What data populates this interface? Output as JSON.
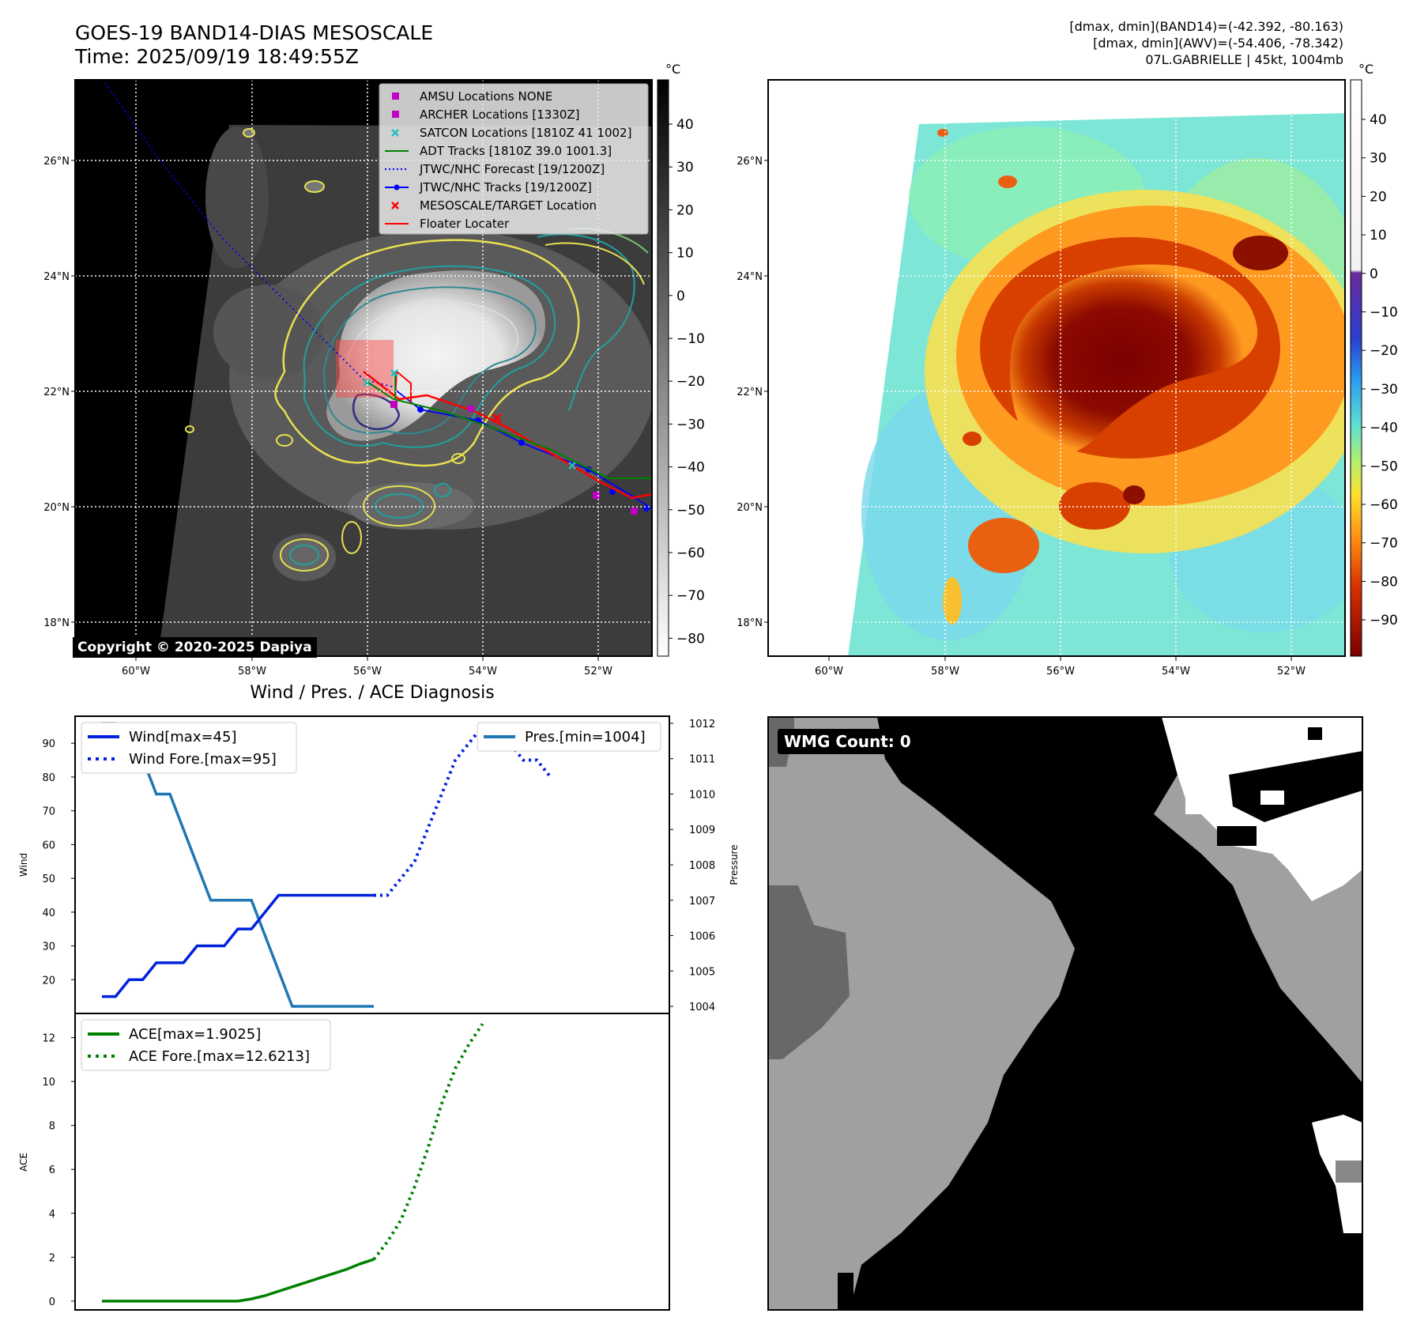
{
  "header": {
    "title_line1": "GOES-19 BAND14-DIAS MESOSCALE",
    "title_line2": "Time: 2025/09/19 18:49:55Z",
    "info_line1": "[dmax, dmin](BAND14)=(-42.392, -80.163)",
    "info_line2": "[dmax, dmin](AWV)=(-54.406, -78.342)",
    "info_line3": "07L.GABRIELLE | 45kt, 1004mb"
  },
  "maps": {
    "lat_ticks": [
      "26°N",
      "24°N",
      "22°N",
      "20°N",
      "18°N"
    ],
    "lon_ticks": [
      "60°W",
      "58°W",
      "56°W",
      "54°W",
      "52°W"
    ],
    "unit": "°C",
    "left_colorbar_ticks": [
      "40",
      "30",
      "20",
      "10",
      "0",
      "−10",
      "−20",
      "−30",
      "−40",
      "−50",
      "−60",
      "−70",
      "−80"
    ],
    "right_colorbar_ticks": [
      "40",
      "30",
      "20",
      "10",
      "0",
      "−10",
      "−20",
      "−30",
      "−40",
      "−50",
      "−60",
      "−70",
      "−80",
      "−90"
    ],
    "copyright": "Copyright © 2020-2025 Dapiya",
    "legend": [
      {
        "label": "AMSU Locations NONE",
        "kind": "square",
        "color": "#c000c0"
      },
      {
        "label": "ARCHER Locations [1330Z]",
        "kind": "square",
        "color": "#c000c0"
      },
      {
        "label": "SATCON Locations [1810Z 41 1002]",
        "kind": "x",
        "color": "#20c0c0"
      },
      {
        "label": "ADT Tracks [1810Z 39.0 1001.3]",
        "kind": "line",
        "color": "#008000"
      },
      {
        "label": "JTWC/NHC Forecast [19/1200Z]",
        "kind": "dotted",
        "color": "#0000ff"
      },
      {
        "label": "JTWC/NHC Tracks [19/1200Z]",
        "kind": "line-dot",
        "color": "#0000ff"
      },
      {
        "label": "MESOSCALE/TARGET Location",
        "kind": "x",
        "color": "#ff0000"
      },
      {
        "label": "Floater Locater",
        "kind": "line",
        "color": "#ff0000"
      }
    ]
  },
  "wmg": {
    "label": "WMG Count: 0"
  },
  "chart_data": [
    {
      "type": "line",
      "title": "Wind / Pres. / ACE Diagnosis",
      "ylabel": "Wind",
      "y2label": "Pressure",
      "ylim": [
        10,
        98
      ],
      "y2lim": [
        1003.8,
        1012.2
      ],
      "yticks": [
        20,
        30,
        40,
        50,
        60,
        70,
        80,
        90
      ],
      "y2ticks": [
        1004,
        1005,
        1006,
        1007,
        1008,
        1009,
        1010,
        1011,
        1012
      ],
      "series": [
        {
          "name": "Wind[max=45]",
          "style": "solid",
          "color": "#0022dd",
          "values": [
            15,
            15,
            20,
            20,
            25,
            25,
            25,
            30,
            30,
            30,
            35,
            35,
            40,
            45,
            45,
            45,
            45,
            45,
            45,
            45,
            45
          ]
        },
        {
          "name": "Wind Fore.[max=95]",
          "style": "dotted",
          "color": "#0022dd",
          "values": [
            45,
            45,
            50,
            55,
            65,
            75,
            85,
            90,
            95,
            95,
            90,
            85,
            85,
            80
          ]
        },
        {
          "name": "Pres.[min=1004]",
          "style": "solid",
          "color": "#1f77b4",
          "axis": "right",
          "values": [
            1012,
            1012,
            1011,
            1011,
            1010,
            1010,
            1009,
            1008,
            1007,
            1007,
            1007,
            1007,
            1006,
            1005,
            1004,
            1004,
            1004,
            1004,
            1004,
            1004,
            1004
          ]
        }
      ]
    },
    {
      "type": "line",
      "ylabel": "ACE",
      "ylim": [
        -0.4,
        13.1
      ],
      "yticks": [
        0,
        2,
        4,
        6,
        8,
        10,
        12
      ],
      "series": [
        {
          "name": "ACE[max=1.9025]",
          "style": "solid",
          "color": "#008000",
          "values": [
            0,
            0,
            0,
            0,
            0,
            0,
            0,
            0,
            0,
            0,
            0,
            0.1,
            0.25,
            0.45,
            0.65,
            0.85,
            1.05,
            1.25,
            1.45,
            1.7,
            1.9025
          ]
        },
        {
          "name": "ACE Fore.[max=12.6213]",
          "style": "dotted",
          "color": "#008000",
          "values": [
            1.9025,
            2.7,
            3.7,
            5.2,
            7.0,
            9.0,
            10.6,
            11.7,
            12.6213
          ]
        }
      ]
    }
  ]
}
